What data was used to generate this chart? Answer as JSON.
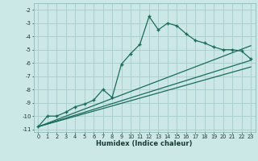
{
  "xlabel": "Humidex (Indice chaleur)",
  "bg_color": "#cce8e6",
  "grid_color": "#aad0ce",
  "line_color": "#1a6b5e",
  "xlim": [
    -0.5,
    23.5
  ],
  "ylim": [
    -11.2,
    -1.5
  ],
  "xticks": [
    0,
    1,
    2,
    3,
    4,
    5,
    6,
    7,
    8,
    9,
    10,
    11,
    12,
    13,
    14,
    15,
    16,
    17,
    18,
    19,
    20,
    21,
    22,
    23
  ],
  "yticks": [
    -11,
    -10,
    -9,
    -8,
    -7,
    -6,
    -5,
    -4,
    -3,
    -2
  ],
  "main_x": [
    0,
    1,
    2,
    3,
    4,
    5,
    6,
    7,
    8,
    9,
    10,
    11,
    12,
    13,
    14,
    15,
    16,
    17,
    18,
    19,
    20,
    21,
    22,
    23
  ],
  "main_y": [
    -10.8,
    -10.0,
    -10.0,
    -9.7,
    -9.3,
    -9.1,
    -8.8,
    -8.0,
    -8.6,
    -6.1,
    -5.3,
    -4.6,
    -2.5,
    -3.5,
    -3.0,
    -3.2,
    -3.8,
    -4.3,
    -4.5,
    -4.8,
    -5.0,
    -5.0,
    -5.1,
    -5.7
  ],
  "line1_x": [
    0,
    23
  ],
  "line1_y": [
    -10.8,
    -4.7
  ],
  "line2_x": [
    0,
    23
  ],
  "line2_y": [
    -10.8,
    -5.8
  ],
  "line3_x": [
    0,
    23
  ],
  "line3_y": [
    -10.8,
    -6.3
  ]
}
